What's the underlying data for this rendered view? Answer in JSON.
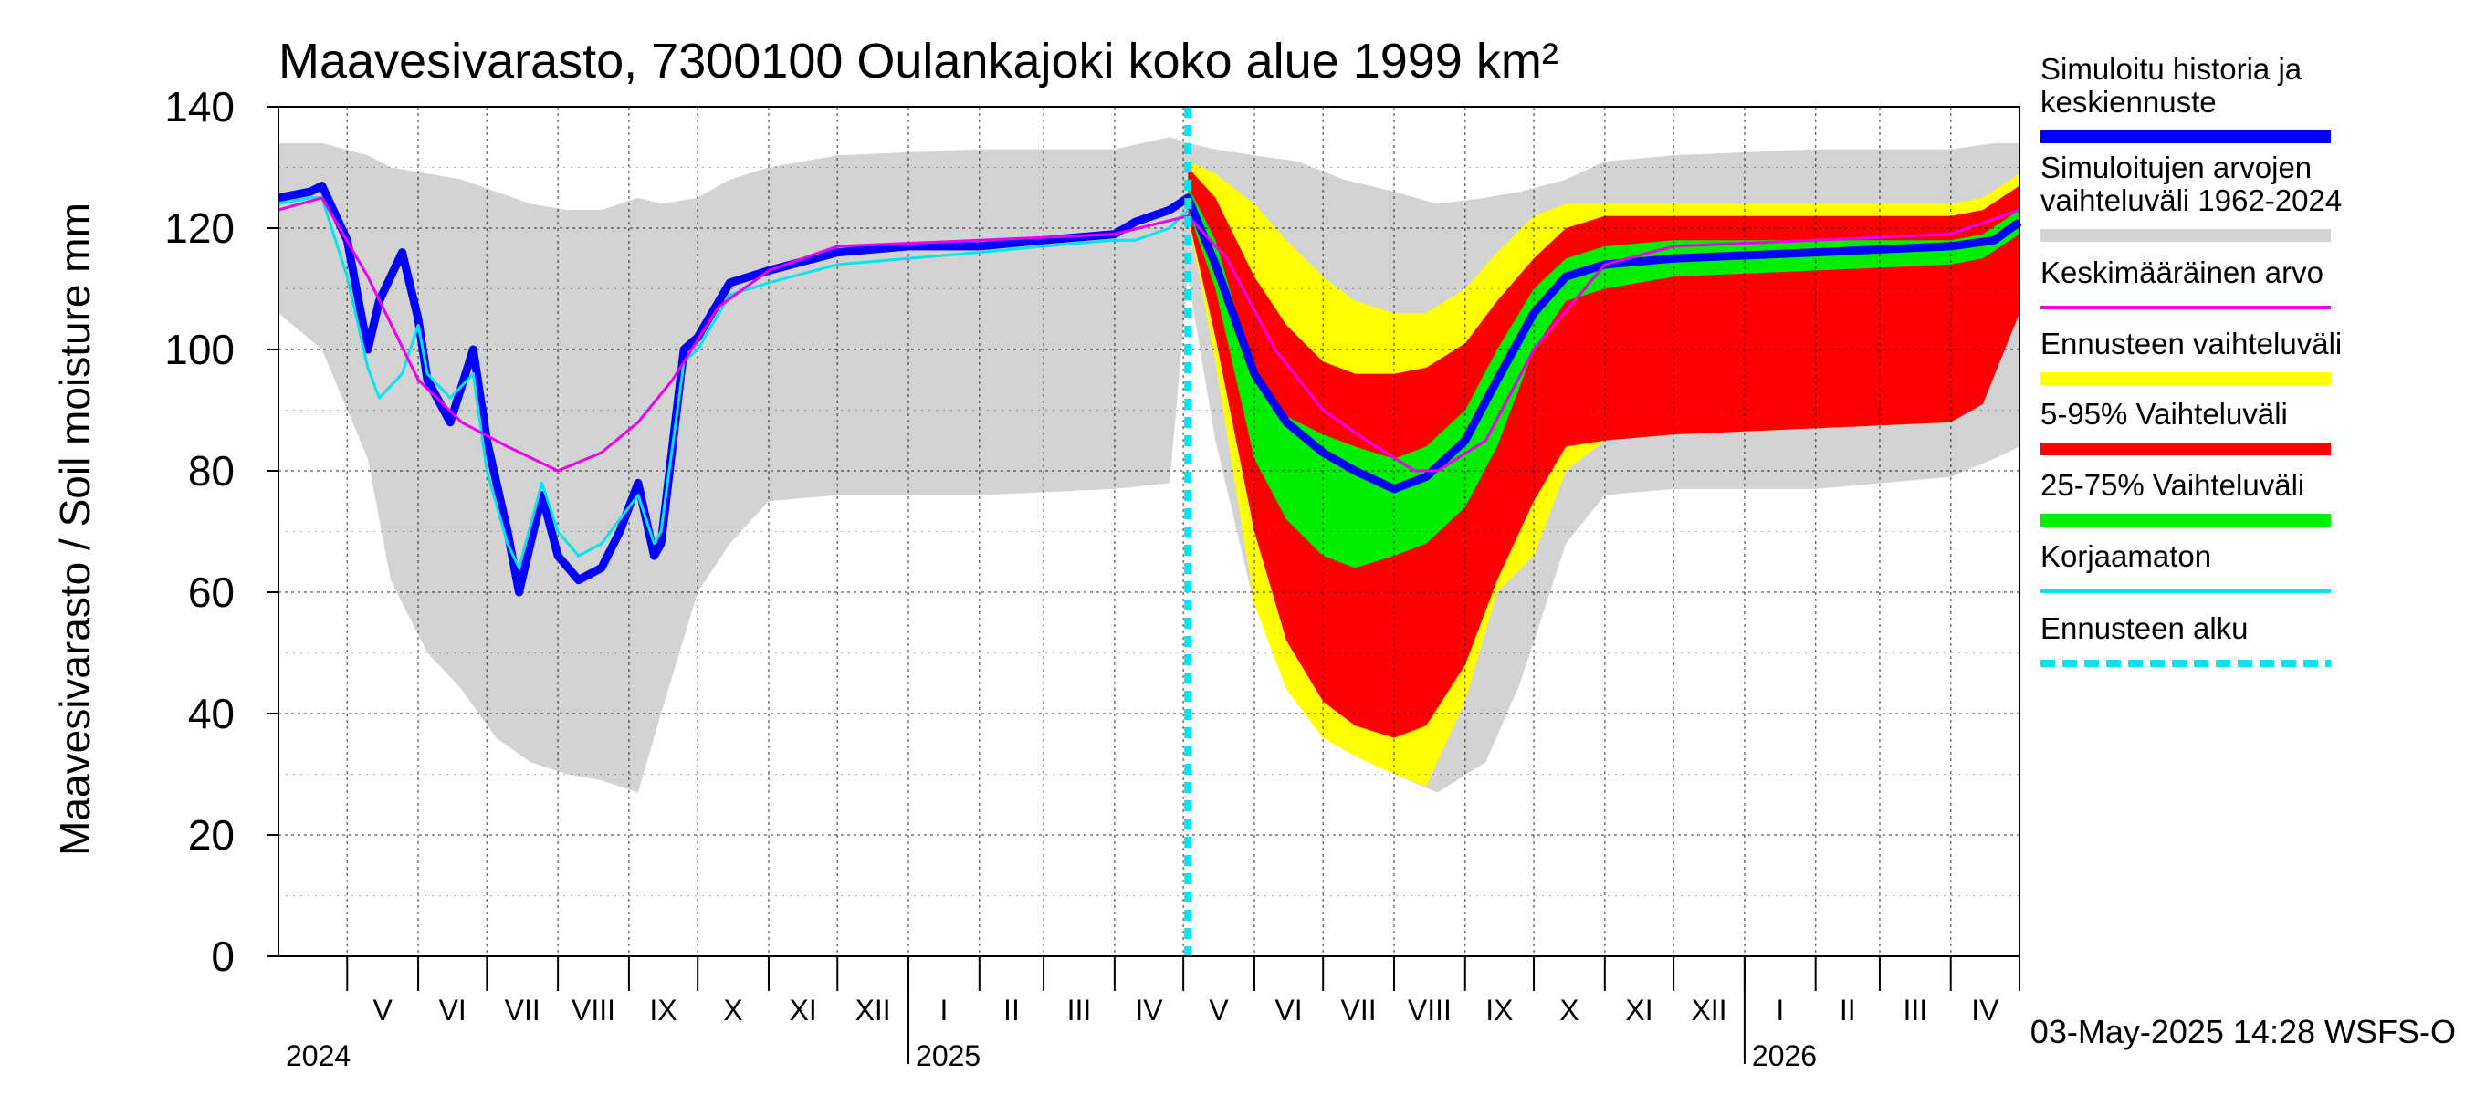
{
  "chart_data": {
    "type": "area",
    "title": "Maavesivarasto, 7300100 Oulankajoki koko alue 1999 km²",
    "ylabel": "Maavesivarasto / Soil moisture   mm",
    "ylim": [
      0,
      140
    ],
    "yticks": [
      0,
      20,
      40,
      60,
      80,
      100,
      120,
      140
    ],
    "x_start": "2024-04-01",
    "x_end": "2026-05-01",
    "forecast_start": "2025-05-03",
    "footer": "03-May-2025 14:28 WSFS-O",
    "months": [
      {
        "label": "V",
        "start": "2024-05-01",
        "end": "2024-06-01"
      },
      {
        "label": "VI",
        "start": "2024-06-01",
        "end": "2024-07-01"
      },
      {
        "label": "VII",
        "start": "2024-07-01",
        "end": "2024-08-01"
      },
      {
        "label": "VIII",
        "start": "2024-08-01",
        "end": "2024-09-01"
      },
      {
        "label": "IX",
        "start": "2024-09-01",
        "end": "2024-10-01"
      },
      {
        "label": "X",
        "start": "2024-10-01",
        "end": "2024-11-01"
      },
      {
        "label": "XI",
        "start": "2024-11-01",
        "end": "2024-12-01"
      },
      {
        "label": "XII",
        "start": "2024-12-01",
        "end": "2025-01-01"
      },
      {
        "label": "I",
        "start": "2025-01-01",
        "end": "2025-02-01"
      },
      {
        "label": "II",
        "start": "2025-02-01",
        "end": "2025-03-01"
      },
      {
        "label": "III",
        "start": "2025-03-01",
        "end": "2025-04-01"
      },
      {
        "label": "IV",
        "start": "2025-04-01",
        "end": "2025-05-01"
      },
      {
        "label": "V",
        "start": "2025-05-01",
        "end": "2025-06-01"
      },
      {
        "label": "VI",
        "start": "2025-06-01",
        "end": "2025-07-01"
      },
      {
        "label": "VII",
        "start": "2025-07-01",
        "end": "2025-08-01"
      },
      {
        "label": "VIII",
        "start": "2025-08-01",
        "end": "2025-09-01"
      },
      {
        "label": "IX",
        "start": "2025-09-01",
        "end": "2025-10-01"
      },
      {
        "label": "X",
        "start": "2025-10-01",
        "end": "2025-11-01"
      },
      {
        "label": "XI",
        "start": "2025-11-01",
        "end": "2025-12-01"
      },
      {
        "label": "XII",
        "start": "2025-12-01",
        "end": "2026-01-01"
      },
      {
        "label": "I",
        "start": "2026-01-01",
        "end": "2026-02-01"
      },
      {
        "label": "II",
        "start": "2026-02-01",
        "end": "2026-03-01"
      },
      {
        "label": "III",
        "start": "2026-03-01",
        "end": "2026-04-01"
      },
      {
        "label": "IV",
        "start": "2026-04-01",
        "end": "2026-05-01"
      }
    ],
    "years": [
      {
        "label": "2024",
        "date": "2024-04-01"
      },
      {
        "label": "2025",
        "date": "2025-01-01"
      },
      {
        "label": "2026",
        "date": "2026-01-01"
      }
    ],
    "legend": [
      {
        "key": "history",
        "label": "Simuloitu historia ja keskiennuste",
        "lines": [
          "Simuloitu historia ja",
          "keskiennuste"
        ],
        "color": "#0000ff",
        "style": "solid"
      },
      {
        "key": "range",
        "label": "Simuloitujen arvojen vaihteluväli 1962-2024",
        "lines": [
          "Simuloitujen arvojen",
          "vaihteluväli 1962-2024"
        ],
        "color": "#d3d3d3",
        "style": "solid"
      },
      {
        "key": "mean",
        "label": "Keskimääräinen arvo",
        "lines": [
          "Keskimääräinen arvo"
        ],
        "color": "#ee00ee",
        "style": "thin"
      },
      {
        "key": "fc_range",
        "label": "Ennusteen vaihteluväli",
        "lines": [
          "Ennusteen vaihteluväli"
        ],
        "color": "#ffff00",
        "style": "solid"
      },
      {
        "key": "p5_95",
        "label": "5-95% Vaihteluväli",
        "lines": [
          "5-95% Vaihteluväli"
        ],
        "color": "#ff0000",
        "style": "solid"
      },
      {
        "key": "p25_75",
        "label": "25-75% Vaihteluväli",
        "lines": [
          "25-75% Vaihteluväli"
        ],
        "color": "#00ee00",
        "style": "solid"
      },
      {
        "key": "uncorrected",
        "label": "Korjaamaton",
        "lines": [
          "Korjaamaton"
        ],
        "color": "#00e5ee",
        "style": "thin"
      },
      {
        "key": "fc_start",
        "label": "Ennusteen alku",
        "lines": [
          "Ennusteen alku"
        ],
        "color": "#00e5ee",
        "style": "dashed"
      }
    ],
    "series": [
      {
        "name": "Simuloitujen arvojen vaihteluväli 1962-2024",
        "kind": "band",
        "x": [
          "2024-04-01",
          "2024-04-20",
          "2024-05-10",
          "2024-05-20",
          "2024-06-05",
          "2024-06-20",
          "2024-07-05",
          "2024-07-20",
          "2024-08-05",
          "2024-08-20",
          "2024-09-05",
          "2024-09-15",
          "2024-10-01",
          "2024-10-15",
          "2024-11-01",
          "2024-12-01",
          "2025-02-01",
          "2025-04-01",
          "2025-04-25",
          "2025-05-03",
          "2025-05-15",
          "2025-06-01",
          "2025-06-20",
          "2025-07-10",
          "2025-08-01",
          "2025-08-20",
          "2025-09-10",
          "2025-09-25",
          "2025-10-15",
          "2025-11-01",
          "2025-12-01",
          "2026-02-01",
          "2026-04-01",
          "2026-04-20",
          "2026-05-01"
        ],
        "upper": [
          134,
          134,
          132,
          130,
          129,
          128,
          126,
          124,
          123,
          123,
          125,
          124,
          125,
          128,
          130,
          132,
          133,
          133,
          135,
          134,
          133,
          132,
          131,
          128,
          126,
          124,
          125,
          126,
          128,
          131,
          132,
          133,
          133,
          134,
          134
        ],
        "lower": [
          106,
          100,
          82,
          62,
          50,
          44,
          36,
          32,
          30,
          29,
          27,
          40,
          60,
          68,
          75,
          76,
          76,
          77,
          78,
          112,
          85,
          58,
          44,
          34,
          30,
          27,
          32,
          45,
          68,
          76,
          77,
          77,
          79,
          82,
          84
        ]
      },
      {
        "name": "Ennusteen vaihteluväli",
        "kind": "band",
        "x": [
          "2025-05-03",
          "2025-05-15",
          "2025-06-01",
          "2025-06-15",
          "2025-07-01",
          "2025-07-15",
          "2025-08-01",
          "2025-08-15",
          "2025-09-01",
          "2025-09-15",
          "2025-10-01",
          "2025-10-15",
          "2025-11-01",
          "2025-12-01",
          "2026-02-01",
          "2026-04-01",
          "2026-04-15",
          "2026-05-01"
        ],
        "upper": [
          131,
          129,
          124,
          118,
          112,
          108,
          106,
          106,
          110,
          116,
          122,
          124,
          124,
          124,
          124,
          124,
          125,
          129
        ],
        "lower": [
          122,
          98,
          58,
          44,
          36,
          33,
          30,
          28,
          42,
          60,
          66,
          80,
          85,
          86,
          87,
          88,
          92,
          107
        ]
      },
      {
        "name": "5-95% Vaihteluväli",
        "kind": "band",
        "x": [
          "2025-05-03",
          "2025-05-15",
          "2025-06-01",
          "2025-06-15",
          "2025-07-01",
          "2025-07-15",
          "2025-08-01",
          "2025-08-15",
          "2025-09-01",
          "2025-09-15",
          "2025-10-01",
          "2025-10-15",
          "2025-11-01",
          "2025-12-01",
          "2026-02-01",
          "2026-04-01",
          "2026-04-15",
          "2026-05-01"
        ],
        "upper": [
          130,
          125,
          112,
          104,
          98,
          96,
          96,
          97,
          101,
          108,
          115,
          120,
          122,
          122,
          122,
          122,
          123,
          127
        ],
        "lower": [
          122,
          102,
          70,
          52,
          42,
          38,
          36,
          38,
          48,
          62,
          75,
          84,
          85,
          86,
          87,
          88,
          91,
          106
        ]
      },
      {
        "name": "25-75% Vaihteluväli",
        "kind": "band",
        "x": [
          "2025-05-03",
          "2025-05-15",
          "2025-06-01",
          "2025-06-15",
          "2025-07-01",
          "2025-07-15",
          "2025-08-01",
          "2025-08-15",
          "2025-09-01",
          "2025-09-15",
          "2025-10-01",
          "2025-10-15",
          "2025-11-01",
          "2025-12-01",
          "2026-02-01",
          "2026-04-01",
          "2026-04-15",
          "2026-05-01"
        ],
        "upper": [
          127,
          118,
          96,
          89,
          86,
          84,
          82,
          84,
          90,
          100,
          110,
          115,
          117,
          118,
          118,
          118,
          119,
          123
        ],
        "lower": [
          123,
          110,
          82,
          72,
          66,
          64,
          66,
          68,
          74,
          84,
          100,
          108,
          110,
          112,
          113,
          114,
          115,
          119
        ]
      },
      {
        "name": "Simuloitu historia ja keskiennuste",
        "kind": "line",
        "color": "#0000ff",
        "width": 9,
        "x": [
          "2024-04-01",
          "2024-04-15",
          "2024-04-20",
          "2024-05-01",
          "2024-05-10",
          "2024-05-15",
          "2024-05-25",
          "2024-06-01",
          "2024-06-05",
          "2024-06-15",
          "2024-06-25",
          "2024-07-01",
          "2024-07-10",
          "2024-07-15",
          "2024-07-25",
          "2024-08-01",
          "2024-08-10",
          "2024-08-20",
          "2024-08-28",
          "2024-09-05",
          "2024-09-12",
          "2024-09-15",
          "2024-09-25",
          "2024-10-01",
          "2024-10-15",
          "2024-11-01",
          "2024-12-01",
          "2025-01-01",
          "2025-02-01",
          "2025-03-01",
          "2025-04-01",
          "2025-04-10",
          "2025-04-25",
          "2025-05-03",
          "2025-05-15",
          "2025-06-01",
          "2025-06-15",
          "2025-07-01",
          "2025-07-15",
          "2025-08-01",
          "2025-08-15",
          "2025-09-01",
          "2025-09-15",
          "2025-10-01",
          "2025-10-15",
          "2025-11-01",
          "2025-12-01",
          "2026-02-01",
          "2026-04-01",
          "2026-04-20",
          "2026-05-01"
        ],
        "y": [
          125,
          126,
          127,
          118,
          100,
          108,
          116,
          105,
          95,
          88,
          100,
          85,
          70,
          60,
          76,
          66,
          62,
          64,
          70,
          78,
          66,
          68,
          100,
          102,
          111,
          113,
          116,
          117,
          117,
          118,
          119,
          121,
          123,
          125,
          114,
          96,
          88,
          83,
          80,
          77,
          79,
          85,
          95,
          106,
          112,
          114,
          115,
          116,
          117,
          118,
          121
        ]
      },
      {
        "name": "Korjaamaton",
        "kind": "line",
        "color": "#00e5ee",
        "width": 3,
        "x": [
          "2024-04-01",
          "2024-04-15",
          "2024-04-20",
          "2024-05-01",
          "2024-05-10",
          "2024-05-15",
          "2024-05-25",
          "2024-06-01",
          "2024-06-05",
          "2024-06-15",
          "2024-06-25",
          "2024-07-01",
          "2024-07-10",
          "2024-07-15",
          "2024-07-25",
          "2024-08-01",
          "2024-08-10",
          "2024-08-20",
          "2024-08-28",
          "2024-09-05",
          "2024-09-12",
          "2024-09-15",
          "2024-09-25",
          "2024-10-01",
          "2024-10-15",
          "2024-11-01",
          "2024-12-01",
          "2025-01-01",
          "2025-02-01",
          "2025-03-01",
          "2025-04-01",
          "2025-04-10",
          "2025-04-25",
          "2025-05-03"
        ],
        "y": [
          124,
          125,
          125,
          112,
          97,
          92,
          96,
          104,
          96,
          92,
          96,
          80,
          68,
          64,
          78,
          70,
          66,
          68,
          72,
          76,
          68,
          70,
          98,
          100,
          109,
          111,
          114,
          115,
          116,
          117,
          118,
          118,
          120,
          123
        ]
      },
      {
        "name": "Keskimääräinen arvo",
        "kind": "line",
        "color": "#ee00ee",
        "width": 3,
        "x": [
          "2024-04-01",
          "2024-04-20",
          "2024-05-10",
          "2024-06-01",
          "2024-06-20",
          "2024-07-10",
          "2024-08-01",
          "2024-08-20",
          "2024-09-05",
          "2024-09-20",
          "2024-10-10",
          "2024-11-01",
          "2024-12-01",
          "2025-02-01",
          "2025-04-01",
          "2025-05-03",
          "2025-05-20",
          "2025-06-10",
          "2025-07-01",
          "2025-07-20",
          "2025-08-10",
          "2025-08-20",
          "2025-09-10",
          "2025-10-01",
          "2025-11-01",
          "2025-12-01",
          "2026-02-01",
          "2026-04-01",
          "2026-05-01"
        ],
        "y": [
          123,
          125,
          112,
          95,
          88,
          84,
          80,
          83,
          88,
          95,
          107,
          113,
          117,
          118,
          119,
          122,
          115,
          100,
          90,
          85,
          80,
          80,
          85,
          100,
          114,
          117,
          118,
          119,
          123
        ]
      }
    ]
  }
}
